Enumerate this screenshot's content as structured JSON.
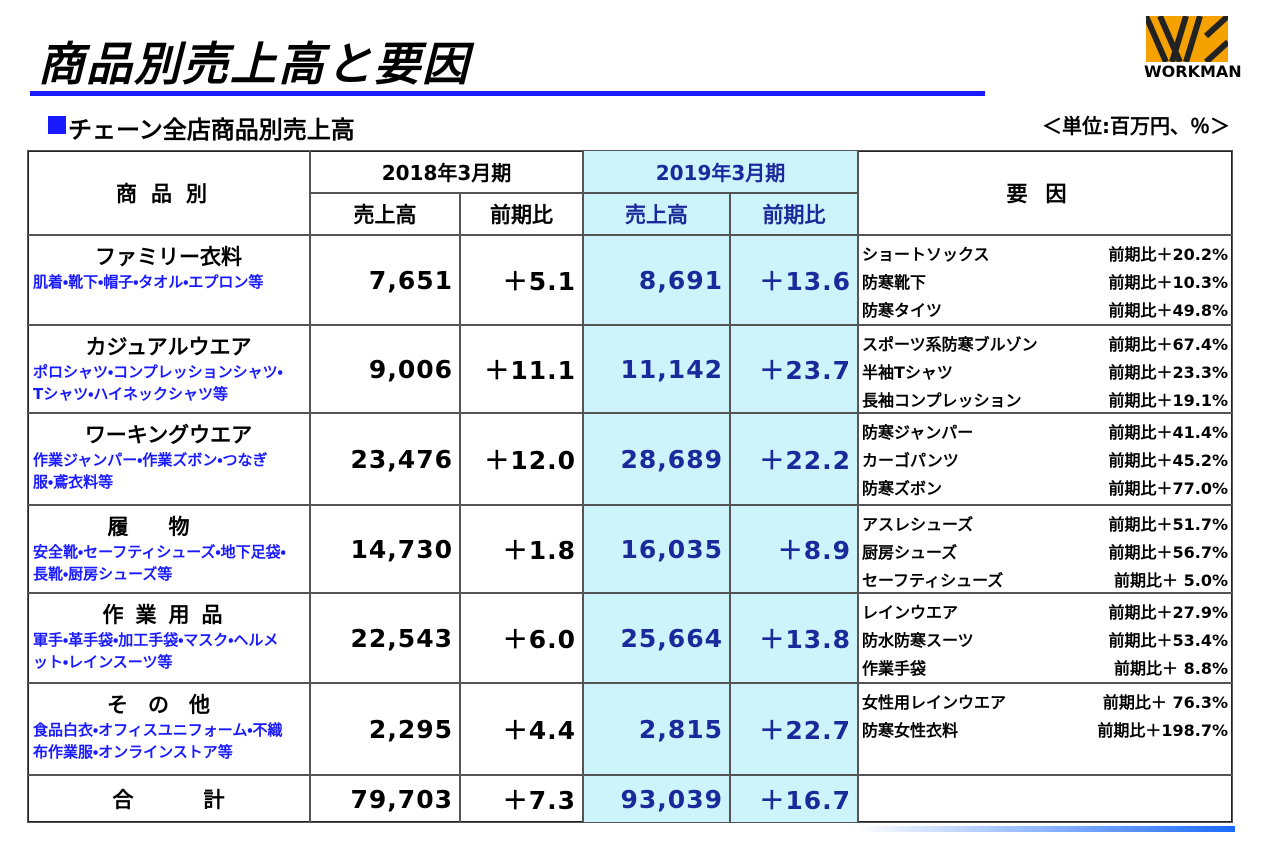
{
  "header": {
    "title": "商品別売上高と要因",
    "logo": "WORKMAN",
    "subtitle": "チェーン全店商品別売上高",
    "unit": "＜単位:百万円、％＞"
  },
  "table": {
    "headers": {
      "product": "商品別",
      "period_prev": "2018年3月期",
      "period_curr": "2019年3月期",
      "sales_prev": "売上高",
      "yoy_prev": "前期比",
      "sales_curr": "売上高",
      "yoy_curr": "前期比",
      "factors": "要因"
    },
    "rows": [
      {
        "name": "ファミリー衣料",
        "desc": "肌着・靴下・帽子・タオル・エプロン等",
        "sales_prev": "7,651",
        "yoy_prev": "＋5.1",
        "sales_curr": "8,691",
        "yoy_curr": "＋13.6",
        "factors": [
          {
            "item": "ショートソックス",
            "change": "前期比＋20.2%"
          },
          {
            "item": "防寒靴下",
            "change": "前期比＋10.3%"
          },
          {
            "item": "防寒タイツ",
            "change": "前期比＋49.8%"
          }
        ]
      },
      {
        "name": "カジュアルウエア",
        "desc": "ポロシャツ・コンプレッションシャツ・Tシャツ・ハイネックシャツ等",
        "sales_prev": "9,006",
        "yoy_prev": "＋11.1",
        "sales_curr": "11,142",
        "yoy_curr": "＋23.7",
        "factors": [
          {
            "item": "スポーツ系防寒ブルゾン",
            "change": "前期比＋67.4%"
          },
          {
            "item": "半袖Tシャツ",
            "change": "前期比＋23.3%"
          },
          {
            "item": "長袖コンプレッション",
            "change": "前期比＋19.1%"
          }
        ]
      },
      {
        "name": "ワーキングウエア",
        "desc": "作業ジャンパー・作業ズボン・つなぎ服・鳶衣料等",
        "sales_prev": "23,476",
        "yoy_prev": "＋12.0",
        "sales_curr": "28,689",
        "yoy_curr": "＋22.2",
        "factors": [
          {
            "item": "防寒ジャンパー",
            "change": "前期比＋41.4%"
          },
          {
            "item": "カーゴパンツ",
            "change": "前期比＋45.2%"
          },
          {
            "item": "防寒ズボン",
            "change": "前期比＋77.0%"
          }
        ]
      },
      {
        "name": "履物",
        "desc": "安全靴・セーフティシューズ・地下足袋・長靴・厨房シューズ等",
        "sales_prev": "14,730",
        "yoy_prev": "＋1.8",
        "sales_curr": "16,035",
        "yoy_curr": "＋8.9",
        "factors": [
          {
            "item": "アスレシューズ",
            "change": "前期比＋51.7%"
          },
          {
            "item": "厨房シューズ",
            "change": "前期比＋56.7%"
          },
          {
            "item": "セーフティシューズ",
            "change": "前期比＋ 5.0%"
          }
        ]
      },
      {
        "name": "作業用品",
        "desc": "軍手・革手袋・加工手袋・マスク・ヘルメット・レインスーツ等",
        "sales_prev": "22,543",
        "yoy_prev": "＋6.0",
        "sales_curr": "25,664",
        "yoy_curr": "＋13.8",
        "factors": [
          {
            "item": "レインウエア",
            "change": "前期比＋27.9%"
          },
          {
            "item": "防水防寒スーツ",
            "change": "前期比＋53.4%"
          },
          {
            "item": "作業手袋",
            "change": "前期比＋ 8.8%"
          }
        ]
      },
      {
        "name": "その他",
        "desc": "食品白衣・オフィスユニフォーム・不織布作業服・オンラインストア等",
        "sales_prev": "2,295",
        "yoy_prev": "＋4.4",
        "sales_curr": "2,815",
        "yoy_curr": "＋22.7",
        "factors": [
          {
            "item": "女性用レインウエア",
            "change": "前期比＋ 76.3%"
          },
          {
            "item": "防寒女性衣料",
            "change": "前期比＋198.7%"
          }
        ]
      }
    ],
    "total": {
      "name": "合計",
      "sales_prev": "79,703",
      "yoy_prev": "＋7.3",
      "sales_curr": "93,039",
      "yoy_curr": "＋16.7"
    }
  }
}
